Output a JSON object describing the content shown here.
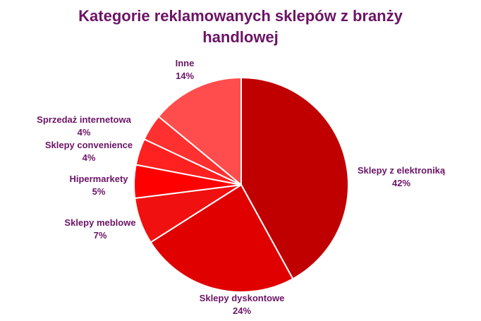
{
  "chart_data": {
    "type": "pie",
    "title_lines": [
      "Kategorie reklamowanych sklepów z branży",
      "handlowej"
    ],
    "slices": [
      {
        "name": "Sklepy z elektroniką",
        "value": 42,
        "label": "42%",
        "color": "#c00000"
      },
      {
        "name": "Sklepy dyskontowe",
        "value": 24,
        "label": "24%",
        "color": "#e00000"
      },
      {
        "name": "Sklepy meblowe",
        "value": 7,
        "label": "7%",
        "color": "#f01010"
      },
      {
        "name": "Hipermarkety",
        "value": 5,
        "label": "5%",
        "color": "#ff0000"
      },
      {
        "name": "Sklepy convenience",
        "value": 4,
        "label": "4%",
        "color": "#ff2020"
      },
      {
        "name": "Sprzedaż internetowa",
        "value": 4,
        "label": "4%",
        "color": "#ff3030"
      },
      {
        "name": "Inne",
        "value": 14,
        "label": "14%",
        "color": "#ff4d4d"
      }
    ],
    "start_angle": "12 o'clock",
    "direction": "clockwise",
    "legend": "none",
    "label_color": "#6b1466"
  }
}
